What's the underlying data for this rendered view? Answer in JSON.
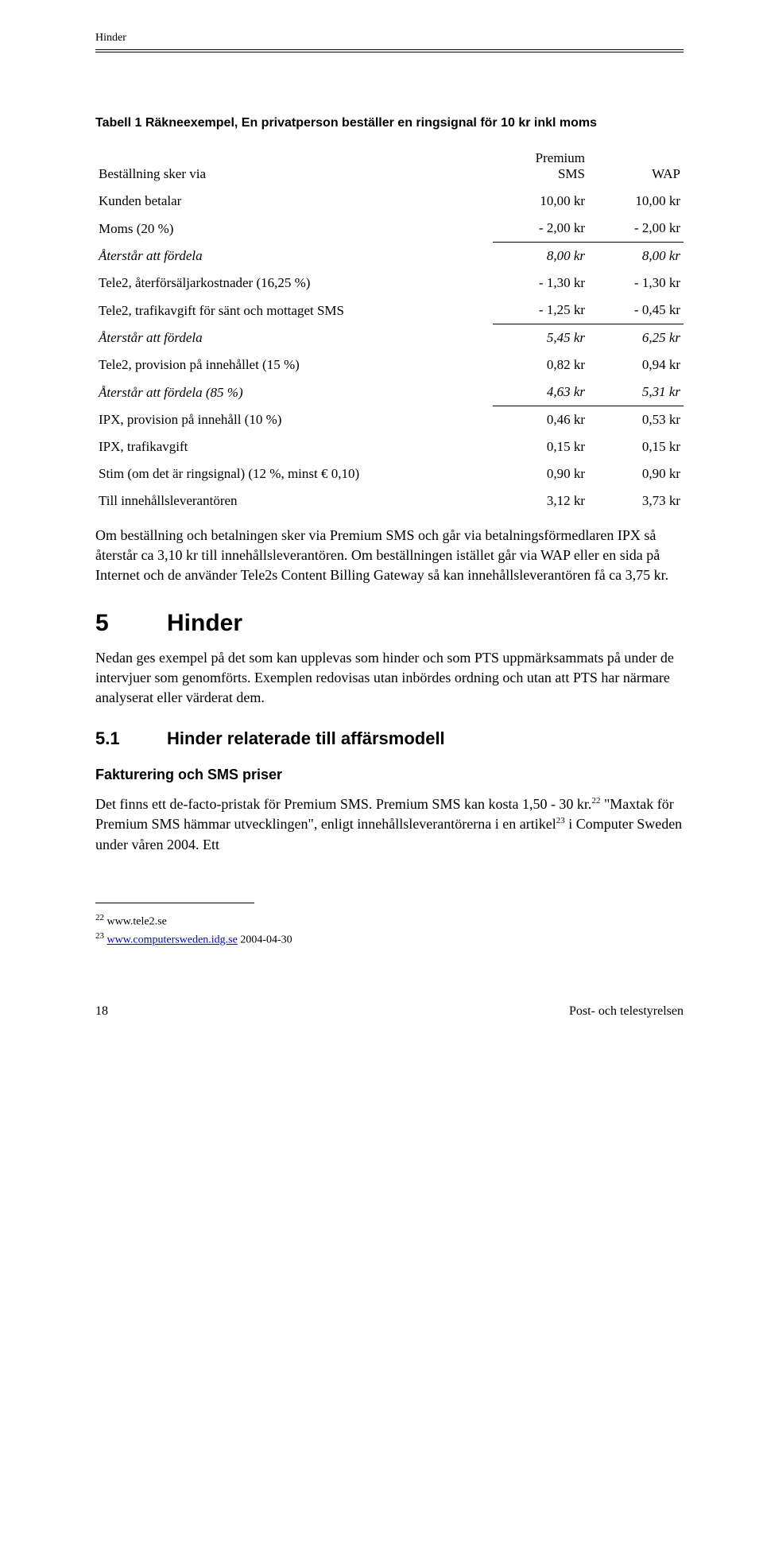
{
  "header": {
    "running": "Hinder"
  },
  "caption": "Tabell 1   Räkneexempel, En privatperson beställer en ringsignal för 10 kr inkl moms",
  "table": {
    "headrow": {
      "label": "Beställning sker via",
      "c1": "Premium SMS",
      "c2": "WAP"
    },
    "rows": [
      {
        "label": "Kunden betalar",
        "c1": "10,00 kr",
        "c2": "10,00 kr"
      },
      {
        "label": "Moms (20 %)",
        "c1": "- 2,00 kr",
        "c2": "- 2,00 kr"
      },
      {
        "label": "Återstår att fördela",
        "c1": "8,00 kr",
        "c2": "8,00 kr",
        "rule": true,
        "italic": true
      },
      {
        "label": "Tele2, återförsäljarkostnader (16,25 %)",
        "c1": "- 1,30 kr",
        "c2": "- 1,30 kr"
      },
      {
        "label": "Tele2, trafikavgift för sänt och mottaget SMS",
        "c1": "- 1,25 kr",
        "c2": "- 0,45 kr"
      },
      {
        "label": "Återstår att fördela",
        "c1": "5,45 kr",
        "c2": "6,25 kr",
        "rule": true,
        "italic": true
      },
      {
        "label": "Tele2, provision på innehållet (15 %)",
        "c1": "0,82 kr",
        "c2": "0,94 kr"
      },
      {
        "label": "Återstår att fördela (85 %)",
        "c1": "4,63 kr",
        "c2": "5,31 kr",
        "italic": true
      },
      {
        "label": "IPX, provision på innehåll (10 %)",
        "c1": "0,46 kr",
        "c2": "0,53 kr",
        "rule": true
      },
      {
        "label": "IPX, trafikavgift",
        "c1": "0,15 kr",
        "c2": "0,15 kr"
      },
      {
        "label": "Stim (om det är ringsignal) (12 %, minst € 0,10)",
        "c1": "0,90 kr",
        "c2": "0,90 kr"
      },
      {
        "label": "Till innehållsleverantören",
        "c1": "3,12 kr",
        "c2": "3,73 kr"
      }
    ]
  },
  "para1": "Om beställning och betalningen sker via Premium SMS och går via betalningsförmedlaren IPX så återstår ca 3,10 kr till innehållsleverantören. Om beställningen istället går via WAP eller en sida på Internet och de använder Tele2s Content Billing Gateway så kan innehållsleverantören få ca 3,75 kr.",
  "h1": {
    "num": "5",
    "title": "Hinder"
  },
  "para2": "Nedan ges exempel på det som kan upplevas som hinder och som PTS uppmärksammats på under de intervjuer som genomförts. Exemplen redovisas utan inbördes ordning och utan att PTS har närmare analyserat eller värderat dem.",
  "h2": {
    "num": "5.1",
    "title": "Hinder relaterade till affärsmodell"
  },
  "h3": "Fakturering och SMS priser",
  "para3_pre": "Det finns ett de-facto-pristak för Premium SMS. Premium SMS kan kosta 1,50 - 30 kr.",
  "para3_mid": " \"Maxtak för Premium SMS hämmar utvecklingen\", enligt innehållsleverantörerna i en artikel",
  "para3_post": " i Computer Sweden under våren 2004. Ett",
  "fn": {
    "n22": "22",
    "t22": " www.tele2.se",
    "n23": "23",
    "link23": "www.computersweden.idg.se",
    "t23": " 2004-04-30"
  },
  "footer": {
    "page": "18",
    "org": "Post- och telestyrelsen"
  }
}
